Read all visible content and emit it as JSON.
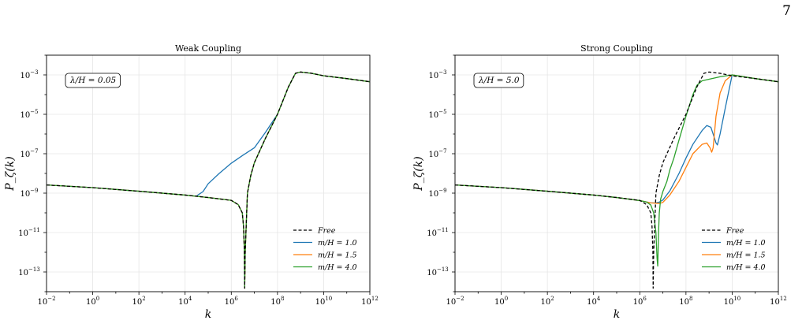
{
  "page_number": "7",
  "colors": {
    "free": "#000000",
    "m1": "#1f77b4",
    "m15": "#ff7f0e",
    "m4": "#2ca02c"
  },
  "chart_data": [
    {
      "type": "line",
      "title": "Weak Coupling",
      "xlabel": "k",
      "ylabel": "P_ζ(k)",
      "xscale": "log",
      "yscale": "log",
      "xlim": [
        0.01,
        1000000000000.0
      ],
      "ylim": [
        1e-14,
        0.01
      ],
      "xticks": [
        {
          "exp": "-2"
        },
        {
          "exp": "0"
        },
        {
          "exp": "2"
        },
        {
          "exp": "4"
        },
        {
          "exp": "6"
        },
        {
          "exp": "8"
        },
        {
          "exp": "10"
        },
        {
          "exp": "12"
        }
      ],
      "yticks": [
        {
          "exp": "-13"
        },
        {
          "exp": "-11"
        },
        {
          "exp": "-9"
        },
        {
          "exp": "-7"
        },
        {
          "exp": "-5"
        },
        {
          "exp": "-3"
        }
      ],
      "grid": true,
      "legend_position": "lower-right",
      "annotation": "λ/H = 0.05",
      "series": [
        {
          "name": "Free",
          "color": "#000000",
          "dash": true,
          "x": [
            0.01,
            1,
            100,
            10000.0,
            100000.0,
            1000000.0,
            2000000.0,
            3000000.0,
            3400000.0,
            3700000.0,
            3800000.0,
            4000000.0,
            5000000.0,
            7000000.0,
            10000000.0,
            30000000.0,
            100000000.0,
            300000000.0,
            600000000.0,
            1000000000.0,
            3000000000.0,
            10000000000.0,
            100000000000.0,
            1000000000000.0
          ],
          "y": [
            2.6e-09,
            1.9e-09,
            1.25e-09,
            8e-10,
            6e-10,
            4.3e-10,
            2.6e-10,
            1e-10,
            2e-11,
            1e-12,
            1.5e-14,
            1e-12,
            1e-09,
            8e-09,
            3.5e-08,
            6e-07,
            1e-05,
            0.00025,
            0.0012,
            0.0014,
            0.0012,
            0.0009,
            0.00065,
            0.00045
          ]
        },
        {
          "name": "m/H = 1.0",
          "color": "#1f77b4",
          "dash": false,
          "x": [
            0.01,
            1,
            100,
            10000.0,
            30000.0,
            60000.0,
            100000.0,
            300000.0,
            1000000.0,
            3000000.0,
            10000000.0,
            30000000.0,
            100000000.0,
            300000000.0,
            600000000.0,
            1000000000.0,
            3000000000.0,
            10000000000.0,
            100000000000.0,
            1000000000000.0
          ],
          "y": [
            2.6e-09,
            1.9e-09,
            1.25e-09,
            8e-10,
            7e-10,
            1.2e-09,
            3e-09,
            1e-08,
            3.3e-08,
            8e-08,
            2e-07,
            1.2e-06,
            1e-05,
            0.00025,
            0.0012,
            0.0014,
            0.0012,
            0.0009,
            0.00065,
            0.00045
          ]
        },
        {
          "name": "m/H = 1.5",
          "color": "#ff7f0e",
          "dash": false,
          "x": [
            0.01,
            1,
            100,
            10000.0,
            100000.0,
            1000000.0,
            2000000.0,
            3000000.0,
            3400000.0,
            3700000.0,
            3800000.0,
            4000000.0,
            5000000.0,
            7000000.0,
            10000000.0,
            30000000.0,
            100000000.0,
            300000000.0,
            600000000.0,
            1000000000.0,
            3000000000.0,
            10000000000.0,
            100000000000.0,
            1000000000000.0
          ],
          "y": [
            2.6e-09,
            1.9e-09,
            1.25e-09,
            8e-10,
            6e-10,
            4.3e-10,
            2.6e-10,
            1e-10,
            2e-11,
            1e-12,
            1.5e-14,
            1e-12,
            1e-09,
            8e-09,
            3.5e-08,
            6e-07,
            1e-05,
            0.00025,
            0.0012,
            0.0014,
            0.0012,
            0.0009,
            0.00065,
            0.00045
          ]
        },
        {
          "name": "m/H = 4.0",
          "color": "#2ca02c",
          "dash": false,
          "x": [
            0.01,
            1,
            100,
            10000.0,
            100000.0,
            1000000.0,
            2000000.0,
            3000000.0,
            3400000.0,
            3700000.0,
            3800000.0,
            4000000.0,
            5000000.0,
            7000000.0,
            10000000.0,
            30000000.0,
            100000000.0,
            300000000.0,
            600000000.0,
            1000000000.0,
            3000000000.0,
            10000000000.0,
            100000000000.0,
            1000000000000.0
          ],
          "y": [
            2.6e-09,
            1.9e-09,
            1.25e-09,
            8e-10,
            6e-10,
            4.3e-10,
            2.6e-10,
            1e-10,
            2e-11,
            1e-12,
            1.5e-14,
            1e-12,
            1e-09,
            8e-09,
            3.5e-08,
            6e-07,
            1e-05,
            0.00025,
            0.0012,
            0.0014,
            0.0012,
            0.0009,
            0.00065,
            0.00045
          ]
        }
      ]
    },
    {
      "type": "line",
      "title": "Strong Coupling",
      "xlabel": "k",
      "ylabel": "P_ζ(k)",
      "xscale": "log",
      "yscale": "log",
      "xlim": [
        0.01,
        1000000000000.0
      ],
      "ylim": [
        1e-14,
        0.01
      ],
      "xticks": [
        {
          "exp": "-2"
        },
        {
          "exp": "0"
        },
        {
          "exp": "2"
        },
        {
          "exp": "4"
        },
        {
          "exp": "6"
        },
        {
          "exp": "8"
        },
        {
          "exp": "10"
        },
        {
          "exp": "12"
        }
      ],
      "yticks": [
        {
          "exp": "-13"
        },
        {
          "exp": "-11"
        },
        {
          "exp": "-9"
        },
        {
          "exp": "-7"
        },
        {
          "exp": "-5"
        },
        {
          "exp": "-3"
        }
      ],
      "grid": true,
      "legend_position": "lower-right",
      "annotation": "λ/H = 5.0",
      "series": [
        {
          "name": "Free",
          "color": "#000000",
          "dash": true,
          "x": [
            0.01,
            1,
            100,
            10000.0,
            100000.0,
            1000000.0,
            2000000.0,
            3000000.0,
            3400000.0,
            3700000.0,
            3800000.0,
            4000000.0,
            5000000.0,
            7000000.0,
            10000000.0,
            30000000.0,
            100000000.0,
            300000000.0,
            600000000.0,
            1000000000.0,
            3000000000.0,
            10000000000.0,
            100000000000.0,
            1000000000000.0
          ],
          "y": [
            2.6e-09,
            1.9e-09,
            1.25e-09,
            8e-10,
            6e-10,
            4.3e-10,
            2.6e-10,
            1e-10,
            2e-11,
            1e-12,
            1.5e-14,
            1e-12,
            1e-09,
            8e-09,
            3.5e-08,
            6e-07,
            1e-05,
            0.00025,
            0.0012,
            0.0014,
            0.0012,
            0.0009,
            0.00065,
            0.00045
          ]
        },
        {
          "name": "m/H = 1.0",
          "color": "#1f77b4",
          "dash": false,
          "x": [
            0.01,
            1,
            100,
            10000.0,
            100000.0,
            1000000.0,
            3000000.0,
            5000000.0,
            7000000.0,
            10000000.0,
            20000000.0,
            50000000.0,
            100000000.0,
            200000000.0,
            500000000.0,
            800000000.0,
            1200000000.0,
            1600000000.0,
            2000000000.0,
            2300000000.0,
            3000000000.0,
            5000000000.0,
            10000000000.0,
            100000000000.0,
            1000000000000.0
          ],
          "y": [
            2.6e-09,
            1.9e-09,
            1.25e-09,
            8e-10,
            6e-10,
            4.2e-10,
            3.2e-10,
            3.2e-10,
            3.5e-10,
            4.5e-10,
            1.3e-09,
            1e-08,
            6e-08,
            3e-07,
            1.5e-06,
            2.7e-06,
            2.2e-06,
            8e-07,
            3.5e-07,
            2.8e-07,
            1e-06,
            2e-05,
            0.001,
            0.00065,
            0.00045
          ]
        },
        {
          "name": "m/H = 1.5",
          "color": "#ff7f0e",
          "dash": false,
          "x": [
            0.01,
            1,
            100,
            10000.0,
            100000.0,
            1000000.0,
            3000000.0,
            7000000.0,
            10000000.0,
            20000000.0,
            50000000.0,
            100000000.0,
            200000000.0,
            500000000.0,
            800000000.0,
            1100000000.0,
            1300000000.0,
            1500000000.0,
            2000000000.0,
            3000000000.0,
            5000000000.0,
            10000000000.0,
            100000000000.0,
            1000000000000.0
          ],
          "y": [
            2.6e-09,
            1.9e-09,
            1.25e-09,
            8e-10,
            6e-10,
            4.2e-10,
            3.2e-10,
            3e-10,
            3.4e-10,
            8e-10,
            4e-09,
            2e-08,
            1e-07,
            3e-07,
            3.5e-07,
            2e-07,
            1.2e-07,
            2e-07,
            8e-06,
            0.00012,
            0.0005,
            0.001,
            0.00065,
            0.00045
          ]
        },
        {
          "name": "m/H = 4.0",
          "color": "#2ca02c",
          "dash": false,
          "x": [
            0.01,
            1,
            100,
            10000.0,
            100000.0,
            1000000.0,
            2000000.0,
            3000000.0,
            4000000.0,
            5000000.0,
            5600000.0,
            6000000.0,
            6500000.0,
            7000000.0,
            8000000.0,
            10000000.0,
            15000000.0,
            20000000.0,
            30000000.0,
            50000000.0,
            100000000.0,
            200000000.0,
            300000000.0,
            500000000.0,
            1000000000.0,
            3000000000.0,
            10000000000.0,
            100000000000.0,
            1000000000000.0
          ],
          "y": [
            2.6e-09,
            1.9e-09,
            1.25e-09,
            8e-10,
            6e-10,
            4.2e-10,
            3.5e-10,
            2.5e-10,
            1e-10,
            1e-11,
            5e-13,
            2e-13,
            1e-11,
            1e-10,
            5e-10,
            1.2e-09,
            4e-09,
            1.5e-08,
            6e-08,
            5e-07,
            8e-06,
            0.0001,
            0.0003,
            0.0005,
            0.0006,
            0.0008,
            0.001,
            0.00065,
            0.00045
          ]
        }
      ]
    }
  ]
}
